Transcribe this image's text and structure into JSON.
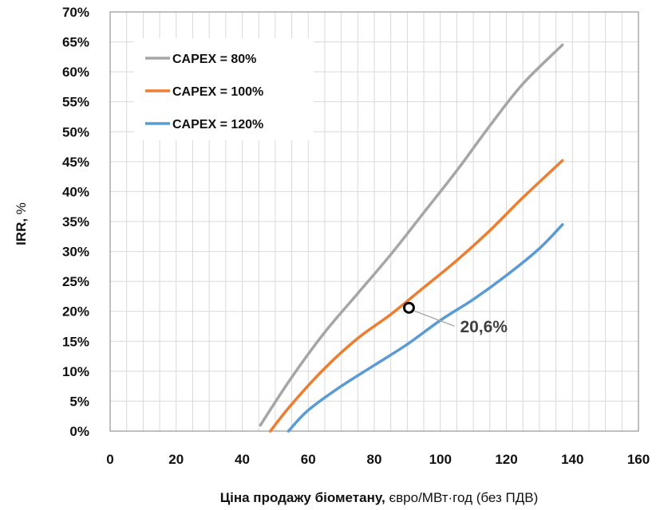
{
  "chart_data": {
    "type": "line",
    "xlabel_bold": "Ціна продажу біометану,",
    "xlabel_rest": " євро/МВт·год (без ПДВ)",
    "ylabel_bold": "IRR,",
    "ylabel_rest": " %",
    "xlim": [
      0,
      160
    ],
    "ylim": [
      0,
      70
    ],
    "x_ticks": [
      0,
      20,
      40,
      60,
      80,
      100,
      120,
      140,
      160
    ],
    "x_tick_labels": [
      "0",
      "20",
      "40",
      "60",
      "80",
      "100",
      "120",
      "140",
      "160"
    ],
    "y_ticks": [
      0,
      5,
      10,
      15,
      20,
      25,
      30,
      35,
      40,
      45,
      50,
      55,
      60,
      65,
      70
    ],
    "y_tick_labels": [
      "0%",
      "5%",
      "10%",
      "15%",
      "20%",
      "25%",
      "30%",
      "35%",
      "40%",
      "45%",
      "50%",
      "55%",
      "60%",
      "65%",
      "70%"
    ],
    "grid": true,
    "legend_position": "top-left",
    "series": [
      {
        "name": "CAPEX = 80%",
        "color": "#a6a6a6",
        "points": [
          [
            45.5,
            1
          ],
          [
            55,
            9
          ],
          [
            65,
            16.5
          ],
          [
            75,
            23
          ],
          [
            85,
            29.5
          ],
          [
            95,
            36.5
          ],
          [
            105,
            43.5
          ],
          [
            115,
            51
          ],
          [
            125,
            58
          ],
          [
            137,
            64.5
          ]
        ]
      },
      {
        "name": "CAPEX = 100%",
        "color": "#ed7d31",
        "points": [
          [
            48.5,
            0
          ],
          [
            55,
            4.5
          ],
          [
            65,
            10.5
          ],
          [
            75,
            15.5
          ],
          [
            85,
            19.5
          ],
          [
            95,
            24
          ],
          [
            105,
            28.5
          ],
          [
            115,
            33.5
          ],
          [
            125,
            39
          ],
          [
            137,
            45.2
          ]
        ]
      },
      {
        "name": "CAPEX = 120%",
        "color": "#5b9bd5",
        "points": [
          [
            54,
            0
          ],
          [
            60,
            3.5
          ],
          [
            70,
            7.5
          ],
          [
            80,
            11
          ],
          [
            90,
            14.5
          ],
          [
            100,
            18.5
          ],
          [
            110,
            22
          ],
          [
            120,
            26
          ],
          [
            130,
            30.5
          ],
          [
            137,
            34.5
          ]
        ]
      }
    ],
    "annotation": {
      "text": "20,6%",
      "x": 90.5,
      "y": 20.6,
      "connector_color": "#a6a6a6"
    }
  }
}
